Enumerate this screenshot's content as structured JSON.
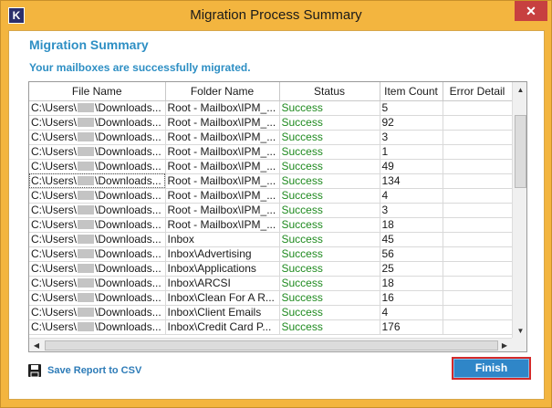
{
  "window": {
    "title": "Migration Process Summary",
    "app_icon_letter": "K",
    "close_glyph": "✕"
  },
  "summary": {
    "heading": "Migration Summary",
    "message": "Your mailboxes are successfully migrated."
  },
  "table": {
    "columns": [
      "File Name",
      "Folder Name",
      "Status",
      "Item Count",
      "Error Detail"
    ],
    "rows": [
      {
        "file_pre": "C:\\Users\\",
        "file_post": "\\Downloads...",
        "folder": "Root - Mailbox\\IPM_...",
        "status": "Success",
        "count": "5",
        "error": ""
      },
      {
        "file_pre": "C:\\Users\\",
        "file_post": "\\Downloads...",
        "folder": "Root - Mailbox\\IPM_...",
        "status": "Success",
        "count": "92",
        "error": ""
      },
      {
        "file_pre": "C:\\Users\\",
        "file_post": "\\Downloads...",
        "folder": "Root - Mailbox\\IPM_...",
        "status": "Success",
        "count": "3",
        "error": ""
      },
      {
        "file_pre": "C:\\Users\\",
        "file_post": "\\Downloads...",
        "folder": "Root - Mailbox\\IPM_...",
        "status": "Success",
        "count": "1",
        "error": ""
      },
      {
        "file_pre": "C:\\Users\\",
        "file_post": "\\Downloads...",
        "folder": "Root - Mailbox\\IPM_...",
        "status": "Success",
        "count": "49",
        "error": ""
      },
      {
        "file_pre": "C:\\Users\\",
        "file_post": "\\Downloads...",
        "folder": "Root - Mailbox\\IPM_...",
        "status": "Success",
        "count": "134",
        "error": ""
      },
      {
        "file_pre": "C:\\Users\\",
        "file_post": "\\Downloads...",
        "folder": "Root - Mailbox\\IPM_...",
        "status": "Success",
        "count": "4",
        "error": ""
      },
      {
        "file_pre": "C:\\Users\\",
        "file_post": "\\Downloads...",
        "folder": "Root - Mailbox\\IPM_...",
        "status": "Success",
        "count": "3",
        "error": ""
      },
      {
        "file_pre": "C:\\Users\\",
        "file_post": "\\Downloads...",
        "folder": "Root - Mailbox\\IPM_...",
        "status": "Success",
        "count": "18",
        "error": ""
      },
      {
        "file_pre": "C:\\Users\\",
        "file_post": "\\Downloads...",
        "folder": "Inbox",
        "status": "Success",
        "count": "45",
        "error": ""
      },
      {
        "file_pre": "C:\\Users\\",
        "file_post": "\\Downloads...",
        "folder": "Inbox\\Advertising",
        "status": "Success",
        "count": "56",
        "error": ""
      },
      {
        "file_pre": "C:\\Users\\",
        "file_post": "\\Downloads...",
        "folder": "Inbox\\Applications",
        "status": "Success",
        "count": "25",
        "error": ""
      },
      {
        "file_pre": "C:\\Users\\",
        "file_post": "\\Downloads...",
        "folder": "Inbox\\ARCSI",
        "status": "Success",
        "count": "18",
        "error": ""
      },
      {
        "file_pre": "C:\\Users\\",
        "file_post": "\\Downloads...",
        "folder": "Inbox\\Clean For A R...",
        "status": "Success",
        "count": "16",
        "error": ""
      },
      {
        "file_pre": "C:\\Users\\",
        "file_post": "\\Downloads...",
        "folder": "Inbox\\Client Emails",
        "status": "Success",
        "count": "4",
        "error": ""
      },
      {
        "file_pre": "C:\\Users\\",
        "file_post": "\\Downloads...",
        "folder": "Inbox\\Credit Card P...",
        "status": "Success",
        "count": "176",
        "error": ""
      }
    ],
    "selected_row": 5
  },
  "actions": {
    "save_label": "Save Report to CSV",
    "finish_label": "Finish"
  },
  "colors": {
    "title_bar": "#f3b53f",
    "accent_blue": "#2e8fc4",
    "status_success": "#1f8a1f",
    "finish_button": "#2f86c8",
    "finish_highlight": "#d42a2a"
  },
  "icons": {
    "save": "floppy-disk-icon",
    "close": "close-icon"
  }
}
